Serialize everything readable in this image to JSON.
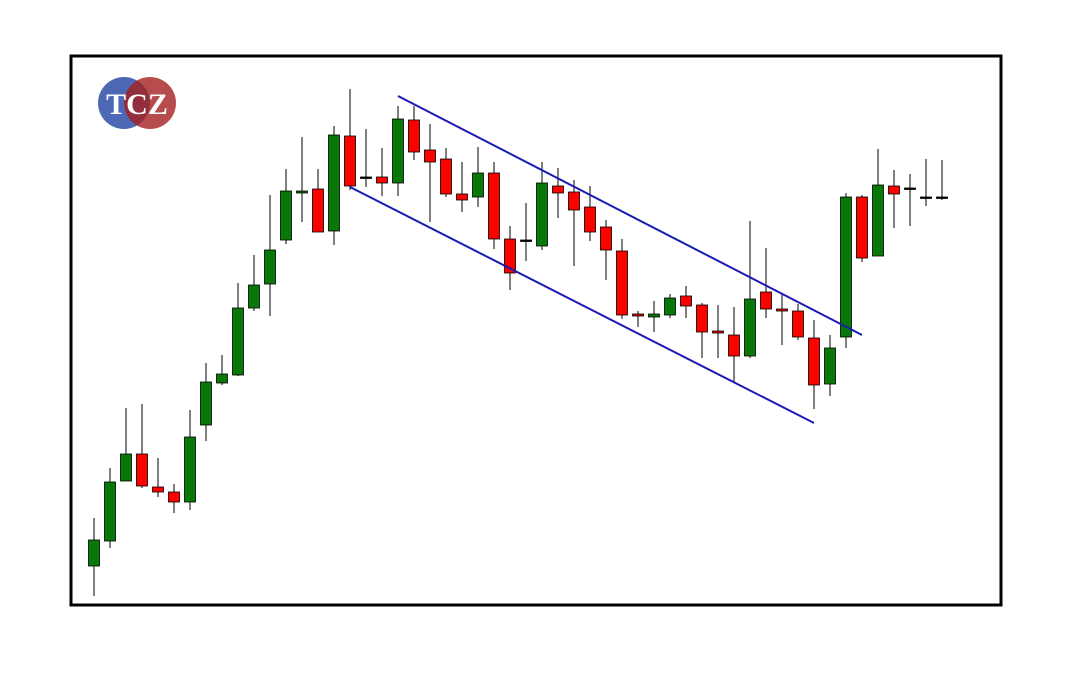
{
  "chart_data": {
    "type": "candlestick",
    "logo": "TCZ",
    "open": [
      34,
      59,
      119,
      146,
      113,
      108,
      98,
      175,
      217,
      225,
      292,
      316,
      360,
      407,
      411,
      369,
      464,
      423,
      423,
      417,
      480,
      450,
      441,
      406,
      403,
      427,
      361,
      360,
      354,
      414,
      408,
      393,
      373,
      349,
      286,
      283,
      285,
      304,
      295,
      269,
      265,
      244,
      308,
      291,
      289,
      262,
      216,
      263,
      403,
      344,
      414,
      412,
      403,
      403
    ],
    "high": [
      82,
      132,
      192,
      196,
      142,
      116,
      190,
      237,
      245,
      317,
      345,
      405,
      431,
      463,
      431,
      474,
      511,
      471,
      452,
      494,
      494,
      476,
      452,
      438,
      453,
      438,
      374,
      397,
      438,
      432,
      420,
      414,
      380,
      361,
      289,
      299,
      306,
      314,
      297,
      295,
      293,
      379,
      352,
      305,
      296,
      280,
      265,
      407,
      405,
      451,
      430,
      426,
      441,
      440
    ],
    "low": [
      4,
      52,
      119,
      112,
      103,
      87,
      90,
      159,
      215,
      224,
      289,
      284,
      356,
      378,
      368,
      355,
      410,
      413,
      404,
      404,
      440,
      378,
      403,
      388,
      393,
      351,
      310,
      339,
      350,
      382,
      334,
      359,
      320,
      281,
      273,
      268,
      282,
      282,
      242,
      242,
      217,
      242,
      282,
      255,
      260,
      191,
      204,
      252,
      338,
      344,
      372,
      374,
      394,
      400
    ],
    "close": [
      60,
      118,
      146,
      114,
      108,
      98,
      163,
      218,
      226,
      292,
      315,
      350,
      409,
      409,
      368,
      465,
      414,
      423,
      417,
      481,
      448,
      438,
      406,
      400,
      427,
      361,
      327,
      360,
      417,
      407,
      390,
      368,
      350,
      285,
      284,
      286,
      302,
      294,
      268,
      267,
      244,
      301,
      291,
      289,
      263,
      215,
      252,
      403,
      342,
      415,
      406,
      412,
      403,
      403
    ],
    "up_color": "#087808",
    "down_color": "#ff0000",
    "flat_color": "#000000",
    "ylim": [
      0,
      550
    ]
  }
}
